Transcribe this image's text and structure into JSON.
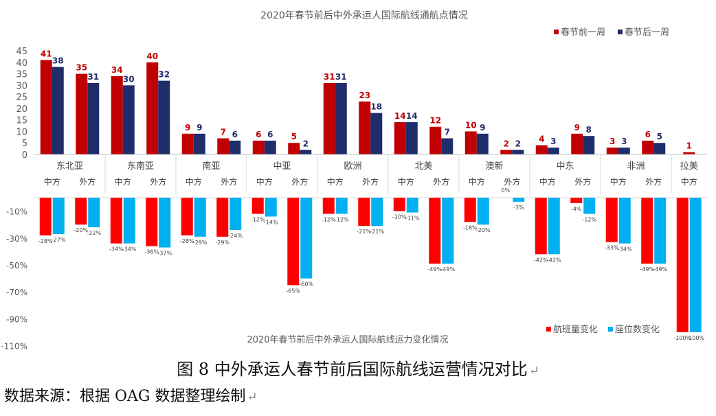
{
  "chart_data": [
    {
      "type": "bar",
      "title": "2020年春节前后中外承运人国际航线通航点情况",
      "regions": [
        "东北亚",
        "东南亚",
        "南亚",
        "中亚",
        "欧洲",
        "北美",
        "澳新",
        "中东",
        "非洲",
        "拉美"
      ],
      "categories": [
        {
          "region": "东北亚",
          "carrier": "中方"
        },
        {
          "region": "东北亚",
          "carrier": "外方"
        },
        {
          "region": "东南亚",
          "carrier": "中方"
        },
        {
          "region": "东南亚",
          "carrier": "外方"
        },
        {
          "region": "南亚",
          "carrier": "中方"
        },
        {
          "region": "南亚",
          "carrier": "外方"
        },
        {
          "region": "中亚",
          "carrier": "中方"
        },
        {
          "region": "中亚",
          "carrier": "外方"
        },
        {
          "region": "欧洲",
          "carrier": "中方"
        },
        {
          "region": "欧洲",
          "carrier": "外方"
        },
        {
          "region": "北美",
          "carrier": "中方"
        },
        {
          "region": "北美",
          "carrier": "外方"
        },
        {
          "region": "澳新",
          "carrier": "中方"
        },
        {
          "region": "澳新",
          "carrier": "外方"
        },
        {
          "region": "中东",
          "carrier": "中方"
        },
        {
          "region": "中东",
          "carrier": "外方"
        },
        {
          "region": "非洲",
          "carrier": "中方"
        },
        {
          "region": "非洲",
          "carrier": "外方"
        },
        {
          "region": "拉美",
          "carrier": "中方"
        }
      ],
      "series": [
        {
          "name": "春节前一周",
          "color": "#c00000",
          "values": [
            41,
            35,
            34,
            40,
            9,
            7,
            6,
            5,
            31,
            23,
            14,
            12,
            10,
            2,
            4,
            9,
            3,
            6,
            1
          ]
        },
        {
          "name": "春节后一周",
          "color": "#1f2d6b",
          "values": [
            38,
            31,
            30,
            32,
            9,
            6,
            6,
            2,
            31,
            18,
            14,
            7,
            9,
            2,
            3,
            8,
            3,
            5,
            null
          ]
        }
      ],
      "yticks": [
        0,
        5,
        10,
        15,
        20,
        25,
        30,
        35,
        40,
        45
      ],
      "ylim": [
        0,
        45
      ],
      "legend_position": "top-right",
      "grid": false
    },
    {
      "type": "bar",
      "title": "2020年春节前后中外承运人国际航线运力变化情况",
      "series": [
        {
          "name": "航班量变化",
          "color": "#ff0000",
          "values": [
            -28,
            -20,
            -34,
            -36,
            -28,
            -29,
            -12,
            -65,
            -12,
            -21,
            -10,
            -49,
            -18,
            0,
            -42,
            -4,
            -33,
            -49,
            -100
          ]
        },
        {
          "name": "座位数变化",
          "color": "#00b0f0",
          "values": [
            -27,
            -22,
            -34,
            -37,
            -29,
            -24,
            -14,
            -60,
            -12,
            -21,
            -11,
            -49,
            -20,
            -3,
            -42,
            -12,
            -34,
            -49,
            -100
          ]
        }
      ],
      "yticks": [
        "-10%",
        "-30%",
        "-50%",
        "-70%",
        "-90%",
        "-110%"
      ],
      "ylim": [
        -110,
        0
      ],
      "unit": "%",
      "legend_position": "bottom-right",
      "grid": false
    }
  ],
  "caption": "图 8 中外承运人春节前后国际航线运营情况对比",
  "source": "数据来源：根据 OAG 数据整理绘制",
  "line_end_mark": "↵"
}
